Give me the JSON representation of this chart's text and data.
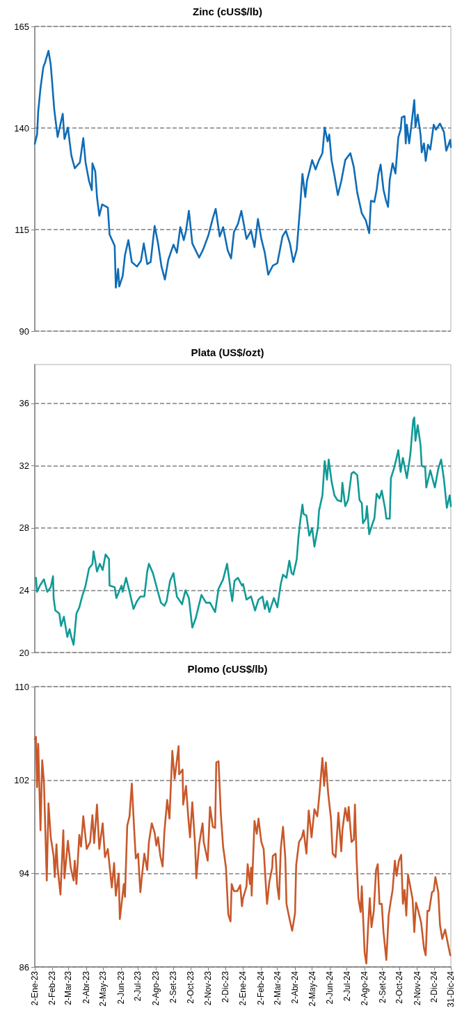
{
  "chart_data": [
    {
      "type": "line",
      "title": "Zinc (cUS$/lb)",
      "xlim": [
        "2023-01-02",
        "2024-12-31"
      ],
      "ylim": [
        90,
        165
      ],
      "yticks": [
        90,
        115,
        140,
        165
      ],
      "grid": "y",
      "tick_labels": "y",
      "x": [
        "2023-01-02",
        "2023-01-06",
        "2023-01-08",
        "2023-01-12",
        "2023-01-17",
        "2023-01-20",
        "2023-01-26",
        "2023-01-30",
        "2023-02-01",
        "2023-02-05",
        "2023-02-11",
        "2023-02-20",
        "2023-02-23",
        "2023-03-01",
        "2023-03-07",
        "2023-03-13",
        "2023-03-22",
        "2023-03-28",
        "2023-04-01",
        "2023-04-07",
        "2023-04-12",
        "2023-04-13",
        "2023-04-18",
        "2023-04-21",
        "2023-04-25",
        "2023-04-30",
        "2023-05-10",
        "2023-05-13",
        "2023-05-22",
        "2023-05-24",
        "2023-05-28",
        "2023-05-30",
        "2023-06-05",
        "2023-06-09",
        "2023-06-15",
        "2023-06-21",
        "2023-06-30",
        "2023-07-07",
        "2023-07-12",
        "2023-07-18",
        "2023-07-24",
        "2023-07-31",
        "2023-08-06",
        "2023-08-12",
        "2023-08-18",
        "2023-08-24",
        "2023-09-02",
        "2023-09-08",
        "2023-09-14",
        "2023-09-20",
        "2023-09-24",
        "2023-09-29",
        "2023-10-05",
        "2023-10-17",
        "2023-10-24",
        "2023-11-02",
        "2023-11-10",
        "2023-11-15",
        "2023-11-22",
        "2023-11-28",
        "2023-12-06",
        "2023-12-12",
        "2023-12-17",
        "2023-12-24",
        "2023-12-30",
        "2024-01-08",
        "2024-01-16",
        "2024-01-22",
        "2024-01-28",
        "2024-02-03",
        "2024-02-09",
        "2024-02-15",
        "2024-02-23",
        "2024-03-02",
        "2024-03-11",
        "2024-03-17",
        "2024-03-24",
        "2024-03-30",
        "2024-04-05",
        "2024-04-11",
        "2024-04-15",
        "2024-04-20",
        "2024-04-23",
        "2024-05-02",
        "2024-05-08",
        "2024-05-14",
        "2024-05-20",
        "2024-05-24",
        "2024-05-29",
        "2024-06-01",
        "2024-06-05",
        "2024-06-10",
        "2024-06-16",
        "2024-06-22",
        "2024-06-29",
        "2024-07-08",
        "2024-07-14",
        "2024-07-20",
        "2024-07-28",
        "2024-08-04",
        "2024-08-10",
        "2024-08-13",
        "2024-08-19",
        "2024-08-23",
        "2024-08-26",
        "2024-08-30",
        "2024-09-04",
        "2024-09-08",
        "2024-09-12",
        "2024-09-15",
        "2024-09-20",
        "2024-09-25",
        "2024-09-30",
        "2024-10-04",
        "2024-10-06",
        "2024-10-11",
        "2024-10-13",
        "2024-10-15",
        "2024-10-19",
        "2024-10-23",
        "2024-10-28",
        "2024-10-30",
        "2024-11-03",
        "2024-11-08",
        "2024-11-10",
        "2024-11-14",
        "2024-11-17",
        "2024-11-21",
        "2024-11-25",
        "2024-12-01",
        "2024-12-05",
        "2024-12-12",
        "2024-12-19",
        "2024-12-23",
        "2024-12-30",
        "2024-12-31"
      ],
      "series": [
        {
          "color": "#0f6cb6",
          "values": [
            136.1,
            138.4,
            144.1,
            149.8,
            155,
            156.1,
            159,
            155.5,
            152,
            144.7,
            137.8,
            143.5,
            137.3,
            140.1,
            133.3,
            130.1,
            131.5,
            137.5,
            131.5,
            127,
            124.7,
            131.3,
            129.3,
            123,
            118.4,
            121.2,
            120.4,
            113.8,
            111,
            100.7,
            105.3,
            101,
            103.6,
            108.7,
            112.4,
            107,
            105.9,
            107.3,
            111.6,
            106.5,
            107,
            115.9,
            111.6,
            105.9,
            102.7,
            107.6,
            111.3,
            109.3,
            115.6,
            112.4,
            114.7,
            119.6,
            111.6,
            108.1,
            110.1,
            113.5,
            117.8,
            120.1,
            113.3,
            115.6,
            109.9,
            107.9,
            114.4,
            116.4,
            119.6,
            112.7,
            114.7,
            110.7,
            117.6,
            112.7,
            109.3,
            103.9,
            106.1,
            106.7,
            113.3,
            114.7,
            111.6,
            107,
            110.1,
            120.7,
            128.7,
            123,
            127,
            132.1,
            129.8,
            132.1,
            133.8,
            140.1,
            136.7,
            138.4,
            132.1,
            128.4,
            123.5,
            126.9,
            132.1,
            133.8,
            130.4,
            124.1,
            119,
            117.3,
            114.1,
            122.1,
            121.8,
            124.8,
            128.5,
            131,
            124.8,
            122.4,
            120.6,
            127.3,
            131.3,
            128.8,
            137.7,
            139.6,
            142.6,
            142.9,
            136.2,
            140.8,
            136.2,
            140.8,
            146.9,
            140.2,
            143.3,
            138.3,
            134,
            136.2,
            131.9,
            135.9,
            134.7,
            140.8,
            139.6,
            141.1,
            139,
            134.4,
            137.1,
            135.3
          ]
        }
      ]
    },
    {
      "type": "line",
      "title": "Plata (US$/ozt)",
      "xlim": [
        "2023-01-02",
        "2024-12-31"
      ],
      "ylim": [
        20,
        38.5
      ],
      "yticks": [
        20,
        24,
        28,
        32,
        36
      ],
      "grid": "y",
      "tick_labels": "y",
      "x": [
        "2023-01-04",
        "2023-01-06",
        "2023-01-11",
        "2023-01-18",
        "2023-01-24",
        "2023-01-30",
        "2023-02-03",
        "2023-02-04",
        "2023-02-07",
        "2023-02-14",
        "2023-02-17",
        "2023-02-22",
        "2023-02-28",
        "2023-03-04",
        "2023-03-07",
        "2023-03-11",
        "2023-03-16",
        "2023-03-21",
        "2023-03-26",
        "2023-04-01",
        "2023-04-07",
        "2023-04-13",
        "2023-04-15",
        "2023-04-21",
        "2023-04-26",
        "2023-05-01",
        "2023-05-06",
        "2023-05-12",
        "2023-05-13",
        "2023-05-22",
        "2023-05-25",
        "2023-06-03",
        "2023-06-05",
        "2023-06-11",
        "2023-06-17",
        "2023-06-24",
        "2023-06-30",
        "2023-07-06",
        "2023-07-13",
        "2023-07-18",
        "2023-07-21",
        "2023-07-28",
        "2023-08-05",
        "2023-08-11",
        "2023-08-17",
        "2023-08-21",
        "2023-08-27",
        "2023-09-02",
        "2023-09-08",
        "2023-09-17",
        "2023-09-23",
        "2023-09-29",
        "2023-10-05",
        "2023-10-11",
        "2023-10-17",
        "2023-10-21",
        "2023-10-29",
        "2023-11-05",
        "2023-11-14",
        "2023-11-20",
        "2023-11-28",
        "2023-12-05",
        "2023-12-12",
        "2023-12-14",
        "2023-12-18",
        "2023-12-24",
        "2023-12-31",
        "2024-01-02",
        "2024-01-08",
        "2024-01-16",
        "2024-01-23",
        "2024-01-29",
        "2024-02-05",
        "2024-02-09",
        "2024-02-13",
        "2024-02-17",
        "2024-02-25",
        "2024-03-02",
        "2024-03-08",
        "2024-03-12",
        "2024-03-18",
        "2024-03-23",
        "2024-03-27",
        "2024-03-30",
        "2024-04-05",
        "2024-04-08",
        "2024-04-11",
        "2024-04-15",
        "2024-04-17",
        "2024-04-22",
        "2024-04-27",
        "2024-05-02",
        "2024-05-06",
        "2024-05-12",
        "2024-05-14",
        "2024-05-20",
        "2024-05-24",
        "2024-05-28",
        "2024-05-31",
        "2024-06-05",
        "2024-06-10",
        "2024-06-15",
        "2024-06-22",
        "2024-06-24",
        "2024-06-29",
        "2024-07-04",
        "2024-07-10",
        "2024-07-14",
        "2024-07-20",
        "2024-07-24",
        "2024-07-28",
        "2024-07-30",
        "2024-08-04",
        "2024-08-06",
        "2024-08-10",
        "2024-08-16",
        "2024-08-19",
        "2024-08-23",
        "2024-08-28",
        "2024-09-01",
        "2024-09-07",
        "2024-09-09",
        "2024-09-15",
        "2024-09-17",
        "2024-09-23",
        "2024-09-30",
        "2024-10-04",
        "2024-10-08",
        "2024-10-15",
        "2024-10-21",
        "2024-10-26",
        "2024-10-28",
        "2024-10-30",
        "2024-11-03",
        "2024-11-08",
        "2024-11-10",
        "2024-11-16",
        "2024-11-18",
        "2024-11-25",
        "2024-12-03",
        "2024-12-09",
        "2024-12-14",
        "2024-12-19",
        "2024-12-24",
        "2024-12-29",
        "2024-12-31"
      ],
      "series": [
        {
          "color": "#109a96",
          "values": [
            24.8,
            23.9,
            24.3,
            24.7,
            23.9,
            24.2,
            24.9,
            23.5,
            22.7,
            22.5,
            21.7,
            22.3,
            21.0,
            21.5,
            21.0,
            20.5,
            22.5,
            22.9,
            23.6,
            24.3,
            25.4,
            25.7,
            26.5,
            25.2,
            25.7,
            25.3,
            26.3,
            26,
            24.3,
            24.2,
            23.5,
            24.3,
            23.9,
            24.8,
            23.9,
            22.8,
            23.3,
            23.6,
            23.6,
            25.2,
            25.7,
            25.1,
            24.0,
            23.2,
            23.0,
            23.3,
            24.6,
            25.1,
            23.6,
            23.1,
            24.0,
            23.5,
            21.6,
            22.2,
            23.1,
            23.7,
            23.2,
            23.2,
            22.6,
            24.1,
            24.7,
            25.7,
            23.8,
            23.3,
            24.6,
            24.8,
            24.3,
            24.4,
            23.4,
            23.6,
            22.7,
            23.4,
            23.6,
            22.8,
            23.3,
            22.6,
            23.5,
            22.9,
            24.4,
            25.0,
            24.8,
            25.9,
            25.1,
            25.0,
            26.0,
            27.4,
            28.4,
            29.5,
            28.9,
            28.8,
            27.5,
            28.0,
            26.8,
            28.0,
            29.1,
            30.1,
            32.3,
            31.1,
            32.4,
            31.0,
            30.1,
            29.8,
            29.7,
            30.9,
            29.4,
            29.8,
            31.5,
            31.6,
            31.4,
            29.8,
            29.6,
            28.3,
            28.6,
            29.4,
            27.6,
            28.3,
            28.6,
            30.2,
            29.9,
            30.4,
            29.2,
            28.6,
            28.6,
            31.2,
            31.9,
            33.0,
            31.6,
            32.5,
            31.2,
            32.7,
            34.9,
            35.1,
            33.6,
            34.6,
            33.3,
            32.0,
            31.9,
            30.6,
            31.7,
            30.6,
            31.8,
            32.4,
            31.1,
            29.3,
            30.1,
            29.4
          ]
        }
      ]
    },
    {
      "type": "line",
      "title": "Plomo (cUS$/lb)",
      "xlim": [
        "2023-01-02",
        "2024-12-31"
      ],
      "ylim": [
        86,
        110
      ],
      "yticks": [
        86,
        94,
        102,
        110
      ],
      "grid": "y",
      "xticks": [
        {
          "value": "2023-01-02",
          "label": "2-Ene-23"
        },
        {
          "value": "2023-02-02",
          "label": "2-Feb-23"
        },
        {
          "value": "2023-03-02",
          "label": "2-Mar-23"
        },
        {
          "value": "2023-04-02",
          "label": "2-Abr-23"
        },
        {
          "value": "2023-05-02",
          "label": "2-May-23"
        },
        {
          "value": "2023-06-02",
          "label": "2-Jun-23"
        },
        {
          "value": "2023-07-02",
          "label": "2-Jul-23"
        },
        {
          "value": "2023-08-02",
          "label": "2-Ago-23"
        },
        {
          "value": "2023-09-02",
          "label": "2-Set-23"
        },
        {
          "value": "2023-10-02",
          "label": "2-Oct-23"
        },
        {
          "value": "2023-11-02",
          "label": "2-Nov-23"
        },
        {
          "value": "2023-12-02",
          "label": "2-Dic-23"
        },
        {
          "value": "2024-01-02",
          "label": "2-Ene-24"
        },
        {
          "value": "2024-02-02",
          "label": "2-Feb-24"
        },
        {
          "value": "2024-03-02",
          "label": "2-Mar-24"
        },
        {
          "value": "2024-04-02",
          "label": "2-Abr-24"
        },
        {
          "value": "2024-05-02",
          "label": "2-May-24"
        },
        {
          "value": "2024-06-02",
          "label": "2-Jun-24"
        },
        {
          "value": "2024-07-02",
          "label": "2-Jul-24"
        },
        {
          "value": "2024-08-02",
          "label": "2-Ago-24"
        },
        {
          "value": "2024-09-02",
          "label": "2-Set-24"
        },
        {
          "value": "2024-10-02",
          "label": "2-Oct-24"
        },
        {
          "value": "2024-11-02",
          "label": "2-Nov-24"
        },
        {
          "value": "2024-12-02",
          "label": "2-Dic-24"
        },
        {
          "value": "2024-12-31",
          "label": "31-Dic-24"
        }
      ],
      "x": [
        "2023-01-02",
        "2023-01-04",
        "2023-01-06",
        "2023-01-08",
        "2023-01-12",
        "2023-01-15",
        "2023-01-18",
        "2023-01-23",
        "2023-01-26",
        "2023-01-30",
        "2023-02-04",
        "2023-02-06",
        "2023-02-09",
        "2023-02-11",
        "2023-02-16",
        "2023-02-21",
        "2023-02-23",
        "2023-03-01",
        "2023-03-06",
        "2023-03-11",
        "2023-03-13",
        "2023-03-16",
        "2023-03-21",
        "2023-03-24",
        "2023-03-28",
        "2023-04-03",
        "2023-04-09",
        "2023-04-13",
        "2023-04-16",
        "2023-04-21",
        "2023-04-25",
        "2023-05-01",
        "2023-05-05",
        "2023-05-10",
        "2023-05-17",
        "2023-05-21",
        "2023-05-24",
        "2023-05-29",
        "2023-05-31",
        "2023-06-07",
        "2023-06-09",
        "2023-06-13",
        "2023-06-17",
        "2023-06-21",
        "2023-06-25",
        "2023-06-28",
        "2023-07-02",
        "2023-07-06",
        "2023-07-09",
        "2023-07-13",
        "2023-07-18",
        "2023-07-21",
        "2023-07-26",
        "2023-07-31",
        "2023-08-03",
        "2023-08-06",
        "2023-08-10",
        "2023-08-14",
        "2023-08-17",
        "2023-08-22",
        "2023-08-26",
        "2023-08-31",
        "2023-09-04",
        "2023-09-11",
        "2023-09-12",
        "2023-09-18",
        "2023-09-19",
        "2023-09-24",
        "2023-09-28",
        "2023-10-01",
        "2023-10-05",
        "2023-10-10",
        "2023-10-12",
        "2023-10-17",
        "2023-10-23",
        "2023-10-25",
        "2023-11-01",
        "2023-11-05",
        "2023-11-10",
        "2023-11-14",
        "2023-11-16",
        "2023-11-20",
        "2023-11-24",
        "2023-11-28",
        "2023-12-03",
        "2023-12-07",
        "2023-12-11",
        "2023-12-13",
        "2023-12-17",
        "2023-12-23",
        "2023-12-28",
        "2023-12-31",
        "2024-01-02",
        "2024-01-08",
        "2024-01-10",
        "2024-01-14",
        "2024-01-16",
        "2024-01-17",
        "2024-01-22",
        "2024-01-26",
        "2024-01-29",
        "2024-02-03",
        "2024-02-07",
        "2024-02-11",
        "2024-02-13",
        "2024-02-17",
        "2024-02-22",
        "2024-02-23",
        "2024-02-28",
        "2024-03-02",
        "2024-03-05",
        "2024-03-08",
        "2024-03-12",
        "2024-03-16",
        "2024-03-18",
        "2024-03-23",
        "2024-03-28",
        "2024-04-02",
        "2024-04-04",
        "2024-04-09",
        "2024-04-14",
        "2024-04-17",
        "2024-04-22",
        "2024-04-26",
        "2024-05-01",
        "2024-05-06",
        "2024-05-11",
        "2024-05-15",
        "2024-05-20",
        "2024-05-23",
        "2024-05-26",
        "2024-05-30",
        "2024-06-04",
        "2024-06-07",
        "2024-06-12",
        "2024-06-17",
        "2024-06-22",
        "2024-06-24",
        "2024-06-29",
        "2024-07-03",
        "2024-07-05",
        "2024-07-10",
        "2024-07-14",
        "2024-07-16",
        "2024-07-19",
        "2024-07-22",
        "2024-07-26",
        "2024-07-28",
        "2024-07-30",
        "2024-08-02",
        "2024-08-05",
        "2024-08-08",
        "2024-08-11",
        "2024-08-14",
        "2024-08-18",
        "2024-08-22",
        "2024-08-25",
        "2024-08-28",
        "2024-09-01",
        "2024-09-04",
        "2024-09-09",
        "2024-09-13",
        "2024-09-16",
        "2024-09-20",
        "2024-09-24",
        "2024-09-27",
        "2024-10-01",
        "2024-10-05",
        "2024-10-08",
        "2024-10-11",
        "2024-10-14",
        "2024-10-17",
        "2024-10-22",
        "2024-10-25",
        "2024-10-28",
        "2024-10-31",
        "2024-11-04",
        "2024-11-09",
        "2024-11-14",
        "2024-11-17",
        "2024-11-20",
        "2024-11-23",
        "2024-11-28",
        "2024-12-01",
        "2024-12-04",
        "2024-12-09",
        "2024-12-12",
        "2024-12-16",
        "2024-12-21",
        "2024-12-25",
        "2024-12-30"
      ],
      "series": [
        {
          "color": "#c8582a",
          "values": [
            105.5,
            105.7,
            101.4,
            105.1,
            97.7,
            103.7,
            101.9,
            93.4,
            100.0,
            97.1,
            95.5,
            93.7,
            96.5,
            94.5,
            92.2,
            97.7,
            93.6,
            96.8,
            94.5,
            93.4,
            95.1,
            93.1,
            97.3,
            96.3,
            98.9,
            96.1,
            96.7,
            99.0,
            96.6,
            99.9,
            96.1,
            98.3,
            95.4,
            96.1,
            92.8,
            94.9,
            92.1,
            94.0,
            90.1,
            93.1,
            92.0,
            98.1,
            98.9,
            101.7,
            97.9,
            95.3,
            95.7,
            92.4,
            93.9,
            95.7,
            94.3,
            96.7,
            98.3,
            97.5,
            96.4,
            97.1,
            95.5,
            94.6,
            97.5,
            100.3,
            98.7,
            104.5,
            102.1,
            104.9,
            102.5,
            102.9,
            99.9,
            101.5,
            98.8,
            97.1,
            100.1,
            96.4,
            93.6,
            96.5,
            98.3,
            96.7,
            95.1,
            99.7,
            98.0,
            97.9,
            103.5,
            103.6,
            99.1,
            96.3,
            94.5,
            90.5,
            89.9,
            93.1,
            92.5,
            92.5,
            93.0,
            91.2,
            91.9,
            92.9,
            94.8,
            93.1,
            94.5,
            92.1,
            98.5,
            97.4,
            98.7,
            96.7,
            96.1,
            92.9,
            91.4,
            93.3,
            94.5,
            95.5,
            95.7,
            92.9,
            91.8,
            96.1,
            98.0,
            95.3,
            91.4,
            90.2,
            89.1,
            90.6,
            94.7,
            96.7,
            97.1,
            97.7,
            95.7,
            99.4,
            97.1,
            99.5,
            98.9,
            100.9,
            103.9,
            101.5,
            103.5,
            100.9,
            98.7,
            95.7,
            95.4,
            99.2,
            95.9,
            97.7,
            99.6,
            98.5,
            99.7,
            96.7,
            96.9,
            99.9,
            95.1,
            91.9,
            90.7,
            92.9,
            90.6,
            87.2,
            86.3,
            89.4,
            91.9,
            89.4,
            90.8,
            94.3,
            94.8,
            91.4,
            91.4,
            89.0,
            86.6,
            90.4,
            91.4,
            92.6,
            95.1,
            93.8,
            95.1,
            95.6,
            91.4,
            92.6,
            90.4,
            93.9,
            92.6,
            91.8,
            89.0,
            91.5,
            90.8,
            89.8,
            87.6,
            87.0,
            90.8,
            90.8,
            92.4,
            92.5,
            93.7,
            92.4,
            89.6,
            88.4,
            89.2,
            88.2,
            87.0
          ]
        }
      ]
    }
  ]
}
